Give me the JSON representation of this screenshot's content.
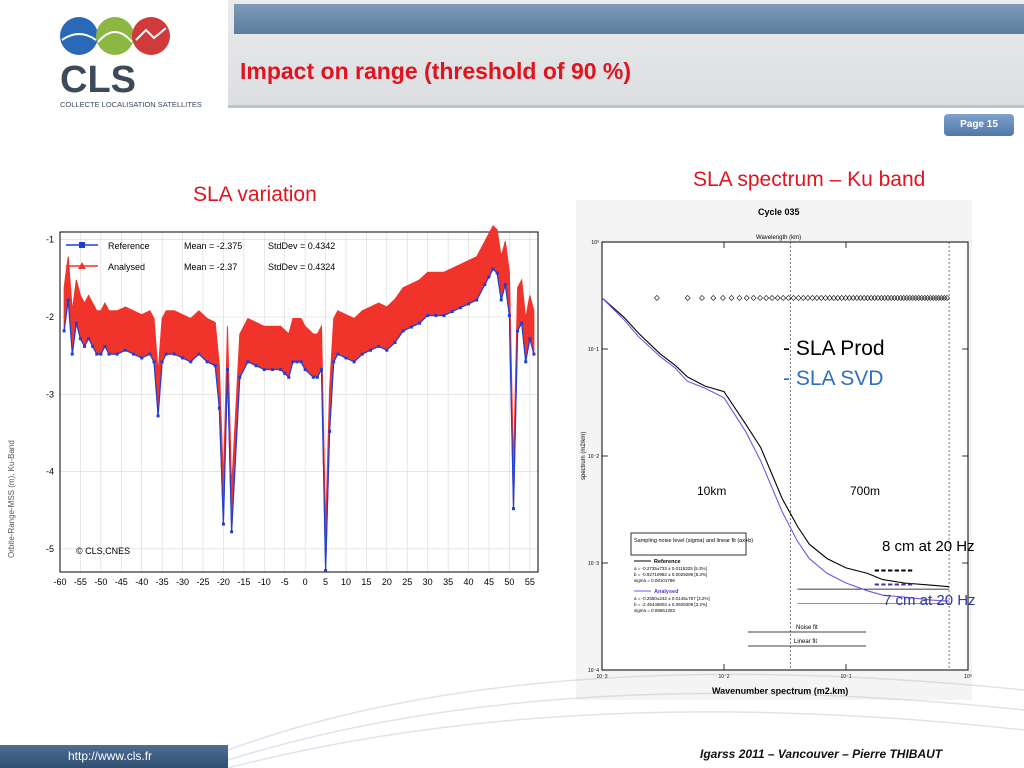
{
  "header": {
    "title": "Impact on range (threshold of 90 %)",
    "page": "Page 15",
    "logo_text": "CLS",
    "logo_subtitle": "COLLECTE LOCALISATION SATELLITES"
  },
  "footer": {
    "url": "http://www.cls.fr",
    "credit": "Igarss 2011 – Vancouver – Pierre THIBAUT"
  },
  "colors": {
    "title_red": "#e0141e",
    "reference_blue": "#1f3fd4",
    "analysed_red": "#f0342c",
    "svd_blue": "#2e6fc4",
    "prod_black": "#000000",
    "analysed_violet": "#7b52e6"
  },
  "left_panel": {
    "heading": "SLA variation"
  },
  "right_panel": {
    "heading": "SLA spectrum – Ku band",
    "legend_prod": "- SLA Prod",
    "legend_svd": "- SLA SVD",
    "label_10km": "10km",
    "label_700m": "700m",
    "note_black": "8 cm at 20 Hz",
    "note_blue": "7 cm at 20 Hz",
    "dash_black": "------",
    "dash_blue": "------"
  },
  "chart_data": [
    {
      "type": "line",
      "ylabel": "Orbite-Range-MSS (m), Ku-Band",
      "xlabel": "",
      "xlim": [
        -60,
        57
      ],
      "ylim": [
        -5.3,
        -0.9
      ],
      "x_ticks": [
        -60,
        -55,
        -50,
        -45,
        -40,
        -35,
        -30,
        -25,
        -20,
        -15,
        -10,
        -5,
        0,
        5,
        10,
        15,
        20,
        25,
        30,
        35,
        40,
        45,
        50,
        55
      ],
      "y_ticks": [
        -1,
        -2,
        -3,
        -4,
        -5
      ],
      "copyright": "© CLS,CNES",
      "grid": true,
      "legend": "top-left",
      "series": [
        {
          "name": "Reference",
          "mean": "Mean = -2.375",
          "std": "StdDev = 0.4342"
        },
        {
          "name": "Analysed",
          "mean": "Mean = -2.37",
          "std": "StdDev = 0.4324"
        }
      ],
      "x": [
        -59,
        -58,
        -57,
        -56,
        -55,
        -54,
        -53,
        -52,
        -51,
        -50,
        -49,
        -48,
        -46,
        -44,
        -42,
        -40,
        -38,
        -37,
        -36,
        -35,
        -34,
        -32,
        -30,
        -28,
        -26,
        -24,
        -22,
        -21,
        -20,
        -19,
        -18,
        -16,
        -14,
        -12,
        -10,
        -8,
        -6,
        -5,
        -4,
        -3,
        -2,
        -1,
        0,
        2,
        3,
        4,
        5,
        6,
        7,
        8,
        10,
        12,
        14,
        16,
        18,
        20,
        22,
        24,
        26,
        28,
        30,
        32,
        34,
        36,
        38,
        40,
        42,
        44,
        45,
        46,
        47,
        48,
        49,
        50,
        51,
        52,
        53,
        54,
        55,
        56
      ],
      "y_center": [
        -1.9,
        -1.5,
        -2.2,
        -1.8,
        -2.0,
        -2.1,
        -2.0,
        -2.1,
        -2.2,
        -2.2,
        -2.1,
        -2.2,
        -2.2,
        -2.15,
        -2.2,
        -2.25,
        -2.2,
        -2.3,
        -3.0,
        -2.3,
        -2.2,
        -2.2,
        -2.25,
        -2.3,
        -2.2,
        -2.3,
        -2.35,
        -2.9,
        -4.4,
        -2.4,
        -4.5,
        -2.5,
        -2.3,
        -2.35,
        -2.4,
        -2.4,
        -2.4,
        -2.45,
        -2.5,
        -2.3,
        -2.3,
        -2.3,
        -2.4,
        -2.5,
        -2.5,
        -2.4,
        -5.0,
        -3.2,
        -2.3,
        -2.2,
        -2.25,
        -2.3,
        -2.2,
        -2.15,
        -2.1,
        -2.15,
        -2.05,
        -1.9,
        -1.85,
        -1.8,
        -1.7,
        -1.7,
        -1.7,
        -1.65,
        -1.6,
        -1.55,
        -1.5,
        -1.3,
        -1.2,
        -1.1,
        -1.15,
        -1.5,
        -1.3,
        -1.7,
        -4.2,
        -1.9,
        -1.8,
        -2.3,
        -2.0,
        -2.2
      ],
      "band_halfwidth": 0.28
    },
    {
      "type": "line",
      "title": "Cycle 035",
      "xlabel": "Wavenumber spectrum (m2.km)",
      "x_top_label": "Wavelength (km)",
      "ylabel": "spectrum (m2/km)",
      "x_scale": "log",
      "y_scale": "log",
      "xlim": [
        0.001,
        1
      ],
      "ylim": [
        0.0001,
        1
      ],
      "vlines_x": [
        0.1,
        0.0015
      ],
      "legend_box": {
        "title": "Sampling noise level (sigma) and linear fit (ax+b)",
        "reference": "Reference",
        "ref_a": "a = -0.2735±733 ± 0.0115325 [5.3%]",
        "ref_b": "b = -0.92710982 ± 0.0029299 [5.3%]",
        "ref_sigma": "sigma = 0.08101786",
        "analysed": "Analysed",
        "an_a": "a = -0.2550±242 ± 0.0145±767 [3.2%]",
        "an_b": "b = -2.45449802 ± 0.0929309 [3.2%]",
        "an_sigma": "sigma = 0.08661303",
        "noise_fit": "Noise fit",
        "linear_fit": "Linear fit"
      },
      "series": [
        {
          "name": "Reference",
          "x": [
            0.001,
            0.0015,
            0.002,
            0.003,
            0.004,
            0.005,
            0.007,
            0.01,
            0.015,
            0.02,
            0.03,
            0.04,
            0.05,
            0.07,
            0.1,
            0.15,
            0.2,
            0.3,
            0.5,
            0.7
          ],
          "y": [
            0.3,
            0.2,
            0.14,
            0.09,
            0.07,
            0.055,
            0.045,
            0.04,
            0.02,
            0.012,
            0.004,
            0.0022,
            0.0015,
            0.0011,
            0.0009,
            0.0008,
            0.0007,
            0.00065,
            0.00062,
            0.0006
          ]
        },
        {
          "name": "Analysed",
          "x": [
            0.001,
            0.0015,
            0.002,
            0.003,
            0.004,
            0.005,
            0.007,
            0.01,
            0.015,
            0.02,
            0.03,
            0.04,
            0.05,
            0.07,
            0.1,
            0.15,
            0.2,
            0.3,
            0.5,
            0.7
          ],
          "y": [
            0.3,
            0.19,
            0.13,
            0.085,
            0.066,
            0.05,
            0.043,
            0.035,
            0.017,
            0.009,
            0.003,
            0.0016,
            0.0011,
            0.0008,
            0.00065,
            0.00055,
            0.0005,
            0.00048,
            0.00045,
            0.00044
          ]
        }
      ]
    }
  ]
}
